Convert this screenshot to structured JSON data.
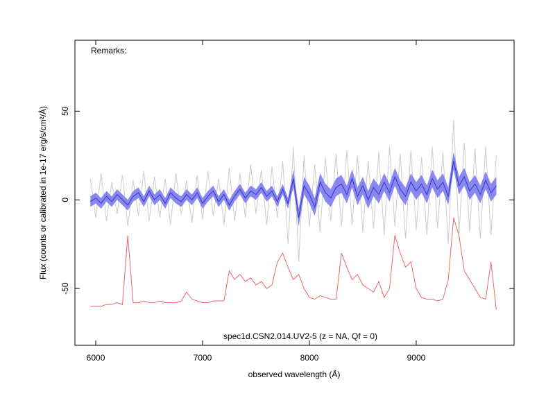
{
  "chart_data": {
    "type": "line",
    "annotations": [
      "Remarks:",
      "spec1d.CSN2.014.UV2-5 (z =   NA, Qf = 0)"
    ],
    "x_label": "observed wavelength (Å)",
    "y_label": "Flux (counts or calibrated in 1e-17 erg/s/cm²/Å)",
    "xlim": [
      5805,
      9916
    ],
    "ylim": [
      -82,
      90
    ],
    "xticks": [
      6000,
      7000,
      8000,
      9000
    ],
    "yticks": [
      -50,
      0,
      50
    ],
    "x": [
      5950,
      6000,
      6050,
      6100,
      6150,
      6200,
      6250,
      6300,
      6350,
      6400,
      6450,
      6500,
      6550,
      6600,
      6650,
      6700,
      6750,
      6800,
      6850,
      6900,
      6950,
      7000,
      7050,
      7100,
      7150,
      7200,
      7250,
      7300,
      7350,
      7400,
      7450,
      7500,
      7550,
      7600,
      7650,
      7700,
      7750,
      7800,
      7850,
      7900,
      7950,
      8000,
      8050,
      8100,
      8150,
      8200,
      8250,
      8300,
      8350,
      8400,
      8450,
      8500,
      8550,
      8600,
      8650,
      8700,
      8750,
      8800,
      8850,
      8900,
      8950,
      9000,
      9050,
      9100,
      9150,
      9200,
      9250,
      9300,
      9350,
      9400,
      9450,
      9500,
      9550,
      9600,
      9650,
      9700,
      9750
    ],
    "series": [
      {
        "color": "#cccccc",
        "values": [
          12,
          -10,
          15,
          -12,
          10,
          -8,
          14,
          -15,
          11,
          -9,
          16,
          -12,
          13,
          -10,
          12,
          -14,
          15,
          -8,
          11,
          -13,
          14,
          -11,
          16,
          -9,
          12,
          -14,
          18,
          -12,
          15,
          -10,
          20,
          -8,
          17,
          -14,
          19,
          -10,
          22,
          -25,
          30,
          -35,
          25,
          -15,
          20,
          -18,
          24,
          -12,
          26,
          -15,
          28,
          -14,
          25,
          -18,
          22,
          -16,
          27,
          -20,
          30,
          -15,
          26,
          -22,
          28,
          -17,
          24,
          -20,
          30,
          -16,
          27,
          -25,
          45,
          -20,
          32,
          -18,
          29,
          -22,
          30,
          -20,
          25
        ]
      },
      {
        "color": "#3333cc",
        "band_color": "#8888ee",
        "values": [
          -1,
          1,
          -2,
          2,
          -1,
          3,
          0,
          -3,
          2,
          4,
          -1,
          5,
          0,
          3,
          -2,
          4,
          1,
          -1,
          3,
          0,
          4,
          -2,
          2,
          5,
          -1,
          3,
          -3,
          2,
          6,
          1,
          5,
          3,
          7,
          2,
          5,
          -1,
          6,
          -2,
          12,
          -10,
          8,
          3,
          -4,
          10,
          4,
          1,
          7,
          9,
          3,
          12,
          2,
          8,
          0,
          7,
          3,
          10,
          4,
          13,
          6,
          2,
          10,
          5,
          9,
          3,
          12,
          6,
          10,
          2,
          22,
          8,
          13,
          5,
          9,
          3,
          11,
          4,
          8
        ],
        "error": [
          3,
          3,
          3,
          3,
          3,
          3,
          3,
          3,
          3,
          3,
          3,
          3,
          3,
          3,
          3,
          3,
          3,
          3,
          3,
          3,
          3,
          3,
          3,
          3,
          3,
          3,
          3,
          3,
          3,
          3,
          3,
          3,
          3,
          3,
          3,
          3,
          3,
          3,
          5,
          5,
          5,
          5,
          5,
          5,
          5,
          5,
          5,
          5,
          5,
          5,
          5,
          5,
          5,
          5,
          5,
          5,
          5,
          5,
          5,
          5,
          5,
          5,
          5,
          5,
          5,
          5,
          5,
          5,
          5,
          5,
          5,
          5,
          5,
          5,
          5,
          5,
          5
        ]
      },
      {
        "color": "#ee6666",
        "values": [
          -60,
          -60,
          -60,
          -59,
          -59,
          -58,
          -59,
          -20,
          -58,
          -58,
          -57,
          -58,
          -58,
          -57,
          -58,
          -58,
          -58,
          -57,
          -52,
          -56,
          -57,
          -58,
          -58,
          -57,
          -57,
          -57,
          -40,
          -45,
          -42,
          -46,
          -44,
          -48,
          -46,
          -50,
          -48,
          -35,
          -30,
          -38,
          -45,
          -42,
          -50,
          -55,
          -56,
          -54,
          -55,
          -56,
          -56,
          -30,
          -38,
          -45,
          -42,
          -48,
          -50,
          -52,
          -46,
          -55,
          -50,
          -20,
          -30,
          -38,
          -35,
          -50,
          -55,
          -56,
          -56,
          -57,
          -56,
          -45,
          -10,
          -20,
          -40,
          -45,
          -50,
          -55,
          -56,
          -35,
          -62
        ]
      }
    ]
  }
}
